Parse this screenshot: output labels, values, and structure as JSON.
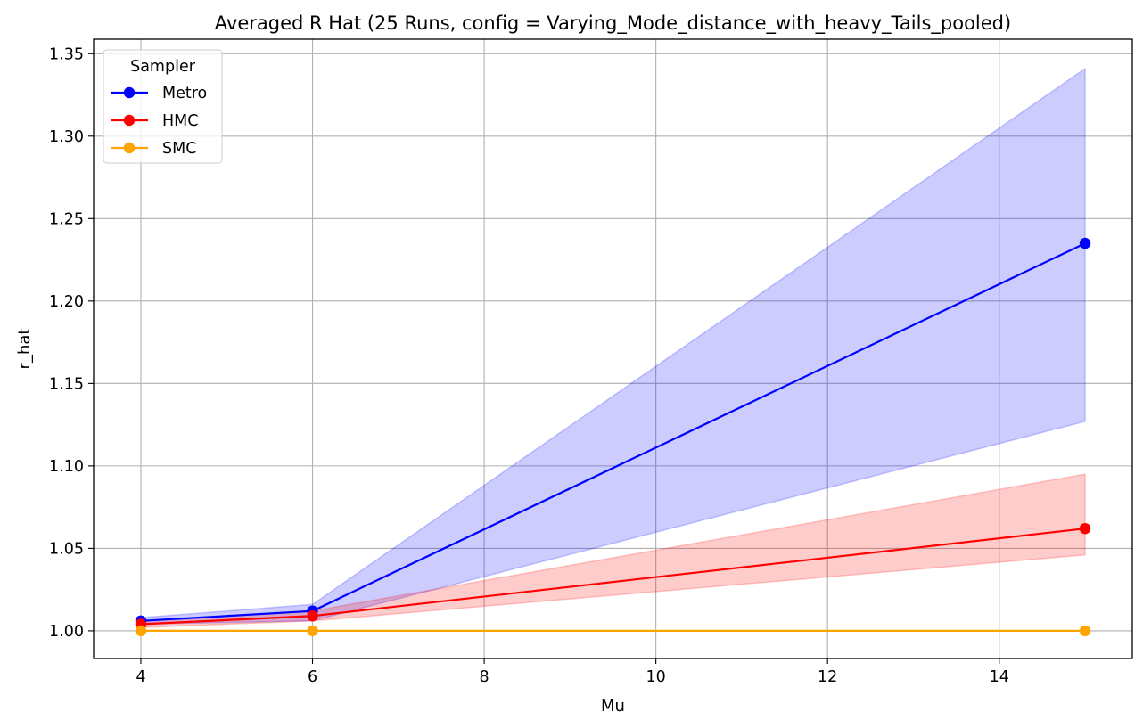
{
  "chart_data": {
    "type": "line",
    "title": "Averaged R Hat (25 Runs, config = Varying_Mode_distance_with_heavy_Tails_pooled)",
    "xlabel": "Mu",
    "ylabel": "r_hat",
    "x": [
      4,
      6,
      15
    ],
    "xlim": [
      3.45,
      15.55
    ],
    "ylim": [
      0.9832,
      1.3588
    ],
    "xticks": [
      4,
      6,
      8,
      10,
      12,
      14
    ],
    "xtick_labels": [
      "4",
      "6",
      "8",
      "10",
      "12",
      "14"
    ],
    "yticks": [
      1.0,
      1.05,
      1.1,
      1.15,
      1.2,
      1.25,
      1.3,
      1.35
    ],
    "ytick_labels": [
      "1.00",
      "1.05",
      "1.10",
      "1.15",
      "1.20",
      "1.25",
      "1.30",
      "1.35"
    ],
    "grid": true,
    "legend": {
      "title": "Sampler",
      "placement": "upper-left"
    },
    "series": [
      {
        "name": "Metro",
        "color": "#0000ff",
        "values": [
          1.006,
          1.012,
          1.235
        ],
        "band_low": [
          1.004,
          1.006,
          1.127
        ],
        "band_high": [
          1.008,
          1.016,
          1.341
        ]
      },
      {
        "name": "HMC",
        "color": "#ff0000",
        "values": [
          1.004,
          1.009,
          1.062
        ],
        "band_low": [
          1.002,
          1.006,
          1.046
        ],
        "band_high": [
          1.006,
          1.012,
          1.095
        ]
      },
      {
        "name": "SMC",
        "color": "#ffa500",
        "values": [
          1.0,
          1.0,
          1.0
        ],
        "band_low": [
          1.0,
          1.0,
          1.0
        ],
        "band_high": [
          1.0,
          1.0,
          1.0
        ]
      }
    ]
  }
}
